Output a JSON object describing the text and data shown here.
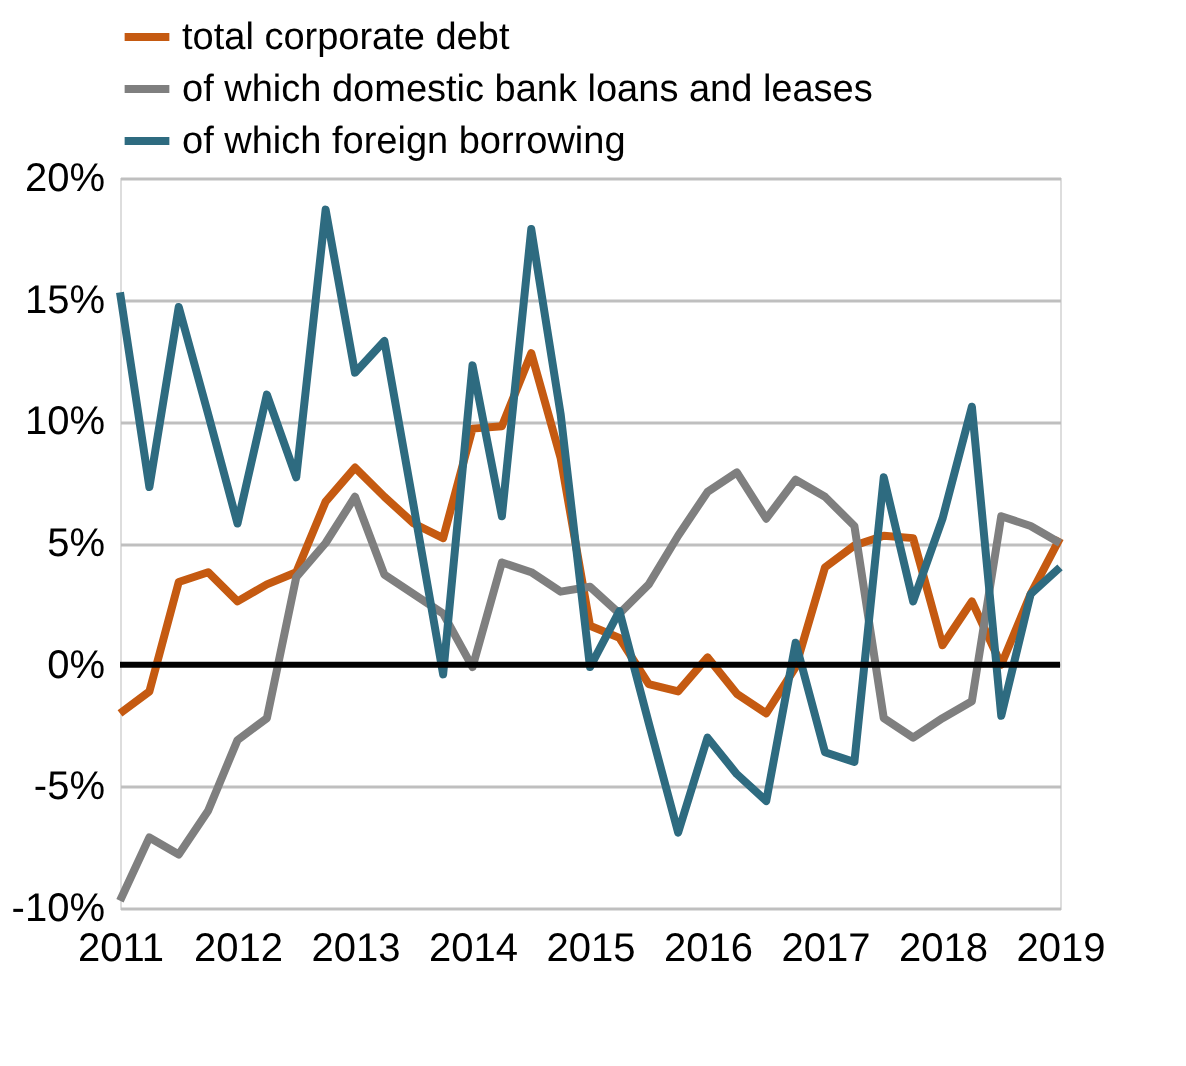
{
  "chart_data": {
    "type": "line",
    "x": [
      2011,
      2011.25,
      2011.5,
      2011.75,
      2012,
      2012.25,
      2012.5,
      2012.75,
      2013,
      2013.25,
      2013.5,
      2013.75,
      2014,
      2014.25,
      2014.5,
      2014.75,
      2015,
      2015.25,
      2015.5,
      2015.75,
      2016,
      2016.25,
      2016.5,
      2016.75,
      2017,
      2017.25,
      2017.5,
      2017.75,
      2018,
      2018.25,
      2018.5,
      2018.75,
      2019
    ],
    "series": [
      {
        "name": "total corporate debt",
        "color": "#c55a11",
        "values": [
          -2.0,
          -1.1,
          3.4,
          3.8,
          2.6,
          3.3,
          3.8,
          6.7,
          8.1,
          6.9,
          5.8,
          5.2,
          9.7,
          9.8,
          12.8,
          8.5,
          1.6,
          1.1,
          -0.8,
          -1.1,
          0.3,
          -1.2,
          -2.0,
          -0.1,
          4.0,
          4.9,
          5.3,
          5.2,
          0.8,
          2.6,
          0.0,
          2.9,
          5.2
        ]
      },
      {
        "name": "of which domestic bank loans and leases",
        "color": "#7f7f7f",
        "values": [
          -9.7,
          -7.1,
          -7.8,
          -6.0,
          -3.1,
          -2.2,
          3.6,
          5.0,
          6.9,
          3.7,
          2.9,
          2.1,
          -0.1,
          4.2,
          3.8,
          3.0,
          3.2,
          2.1,
          3.3,
          5.3,
          7.1,
          7.9,
          6.0,
          7.6,
          6.9,
          5.7,
          -2.2,
          -3.0,
          -2.2,
          -1.5,
          6.1,
          5.7,
          5.0
        ]
      },
      {
        "name": "of which foreign borrowing",
        "color": "#2e6b80",
        "values": [
          15.3,
          7.3,
          14.7,
          10.3,
          5.8,
          11.1,
          7.7,
          18.7,
          12.0,
          13.3,
          6.5,
          -0.4,
          12.3,
          6.1,
          17.9,
          10.3,
          -0.1,
          2.2,
          -2.4,
          -6.9,
          -3.0,
          -4.5,
          -5.6,
          0.9,
          -3.6,
          -4.0,
          7.7,
          2.6,
          6.0,
          10.6,
          -2.1,
          2.9,
          4.0
        ]
      }
    ],
    "xlim": [
      2011,
      2019
    ],
    "xticks": [
      2011,
      2012,
      2013,
      2014,
      2015,
      2016,
      2017,
      2018,
      2019
    ],
    "ylim": [
      -10,
      20
    ],
    "yticks": [
      {
        "value": -10,
        "label": "-10%"
      },
      {
        "value": -5,
        "label": "-5%"
      },
      {
        "value": 0,
        "label": "0%"
      },
      {
        "value": 5,
        "label": "5%"
      },
      {
        "value": 10,
        "label": "10%"
      },
      {
        "value": 15,
        "label": "15%"
      },
      {
        "value": 20,
        "label": "20%"
      }
    ],
    "ref_lines": [
      {
        "axis": "y",
        "value": 0,
        "color": "#000000"
      }
    ],
    "grid": "y",
    "legend": "top",
    "marker": "none",
    "line_style": "solid"
  }
}
